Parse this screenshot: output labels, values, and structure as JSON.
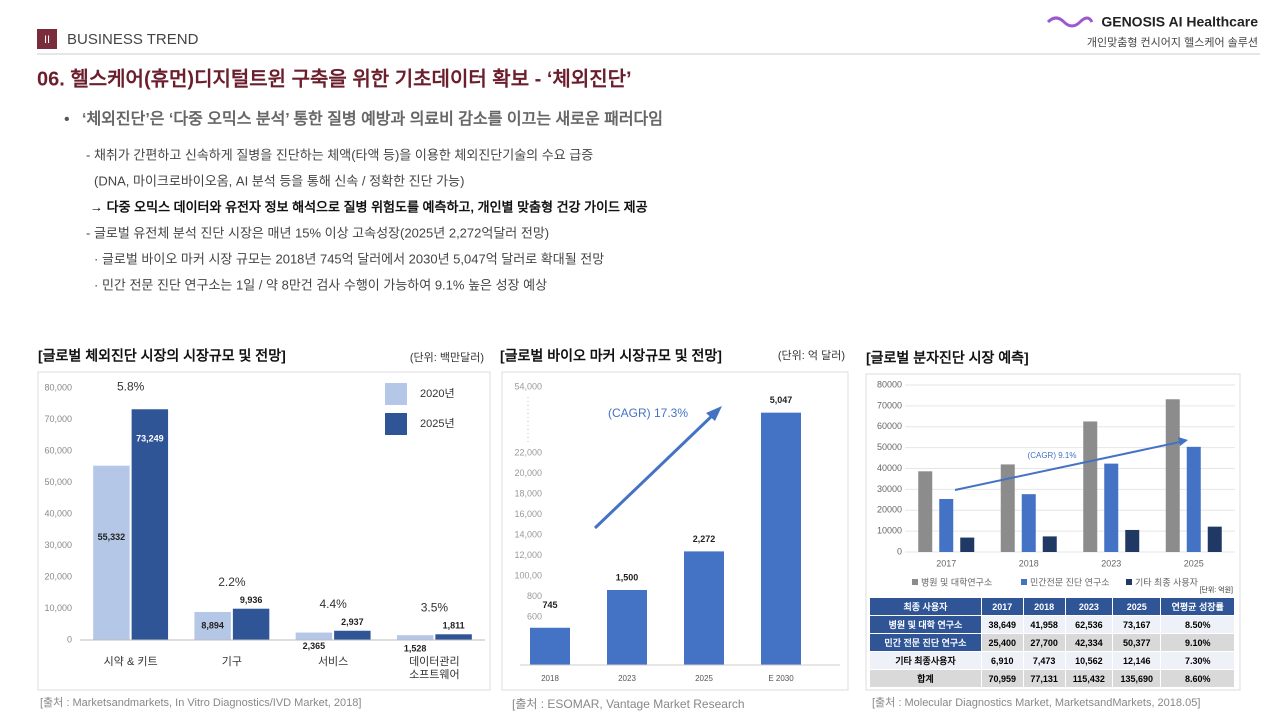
{
  "header": {
    "section_num": "II",
    "section": "BUSINESS TREND",
    "logo": "GENOSIS AI Healthcare",
    "tagline": "개인맞춤형 컨시어지 헬스케어 솔루션",
    "title": "06. 헬스케어(휴먼)디지털트윈 구축을 위한 기초데이터 확보 - ‘체외진단’"
  },
  "body": {
    "bullet": "‘체외진단’은 ‘다중 오믹스 분석’ 통한 질병 예방과 의료비 감소를 이끄는 새로운 패러다임",
    "lines": [
      "- 채취가 간편하고 신속하게 질병을 진단하는 체액(타액 등)을 이용한 체외진단기술의 수요 급증",
      "(DNA, 마이크로바이오옴, AI 분석 등을 통해 신속 / 정확한 진단 가능)",
      "→ 다중 오믹스 데이터와 유전자 정보 해석으로 질병 위험도를 예측하고, 개인별 맞춤형 건강 가이드 제공",
      "- 글로벌 유전체 분석 진단 시장은 매년 15% 이상 고속성장(2025년 2,272억달러 전망)",
      "· 글로벌 바이오 마커 시장 규모는 2018년 745억 달러에서 2030년 5,047억 달러로 확대될 전망",
      "· 민간 전문 진단 연구소는 1일 / 약 8만건 검사 수행이 가능하여 9.1% 높은 성장 예상"
    ]
  },
  "chart_data": [
    {
      "type": "bar",
      "title": "[글로벌 체외진단 시장의 시장규모 및 전망]",
      "unit": "(단위: 백만달러)",
      "categories": [
        "시약 & 키트",
        "기구",
        "서비스",
        "데이터관리\n소프트웨어"
      ],
      "series": [
        {
          "name": "2020년",
          "color": "#b4c7e7",
          "values": [
            55332,
            8894,
            2365,
            1528
          ],
          "value_labels": [
            "55,332",
            "8,894",
            "2,365",
            "1,528"
          ]
        },
        {
          "name": "2025년",
          "color": "#2f5597",
          "values": [
            73249,
            9936,
            2937,
            1811
          ],
          "value_labels": [
            "73,249",
            "9,936",
            "2,937",
            "1,811"
          ]
        }
      ],
      "growth_labels": [
        "5.8%",
        "2.2%",
        "4.4%",
        "3.5%"
      ],
      "ylim": [
        0,
        80000
      ],
      "yticks": [
        0,
        {
          "value": 10000,
          "label": "10,000"
        },
        {
          "value": 20000,
          "label": "20,000"
        },
        {
          "value": 30000,
          "label": "30,000"
        },
        {
          "value": 40000,
          "label": "40,000"
        },
        {
          "value": 50000,
          "label": "50,000"
        },
        {
          "value": 60000,
          "label": "60,000"
        },
        {
          "value": 70000,
          "label": "70,000"
        },
        {
          "value": 80000,
          "label": "80,000"
        }
      ],
      "grid": false,
      "legend": "top-right",
      "source": "[출처 : Marketsandmarkets, In Vitro Diagnostics/IVD Market, 2018]"
    },
    {
      "type": "bar",
      "title": "[글로벌 바이오 마커 시장규모 및 전망]",
      "unit": "(단위: 억 달러)",
      "categories": [
        "2018",
        "2023",
        "2025",
        "E 2030"
      ],
      "values": [
        745,
        1500,
        2272,
        5047
      ],
      "value_labels": [
        "745",
        "1,500",
        "2,272",
        "5,047"
      ],
      "color": "#4472c4",
      "ylim": [
        0,
        5500
      ],
      "y_axis_texts": [
        "54,000",
        "22,000",
        "20,000",
        "18,000",
        "16,000",
        "14,000",
        "12,000",
        "100,00",
        "800",
        "600"
      ],
      "annotation": "(CAGR) 17.3%",
      "source": "[출처 : ESOMAR, Vantage Market Research"
    },
    {
      "type": "bar",
      "title": "[글로벌 분자진단 시장 예측]",
      "unit": "[단위: 억원]",
      "categories": [
        "2017",
        "2018",
        "2023",
        "2025"
      ],
      "series": [
        {
          "name": "병원 및 대학연구소",
          "color": "#8c8c8c",
          "values": [
            38649,
            41958,
            62536,
            73167
          ]
        },
        {
          "name": "민간전문 진단 연구소",
          "color": "#4472c4",
          "values": [
            25400,
            27700,
            42334,
            50377
          ]
        },
        {
          "name": "기타 최종 사용자",
          "color": "#203864",
          "values": [
            6910,
            7473,
            10562,
            12146
          ]
        }
      ],
      "ylim": [
        0,
        80000
      ],
      "yticks": [
        0,
        10000,
        20000,
        30000,
        40000,
        50000,
        60000,
        70000,
        80000
      ],
      "grid": true,
      "legend": "bottom",
      "annotation": "(CAGR) 9.1%",
      "source": "[출처 : Molecular Diagnostics Market, MarketsandMarkets, 2018.05]"
    }
  ],
  "table": {
    "header": [
      "최종 사용자",
      "2017",
      "2018",
      "2023",
      "2025",
      "연평균 성장률"
    ],
    "rows": [
      [
        "병원 및 대학 연구소",
        "38,649",
        "41,958",
        "62,536",
        "73,167",
        "8.50%"
      ],
      [
        "민간 전문 진단 연구소",
        "25,400",
        "27,700",
        "42,334",
        "50,377",
        "9.10%"
      ],
      [
        "기타 최종사용자",
        "6,910",
        "7,473",
        "10,562",
        "12,146",
        "7.30%"
      ],
      [
        "합계",
        "70,959",
        "77,131",
        "115,432",
        "135,690",
        "8.60%"
      ]
    ]
  }
}
